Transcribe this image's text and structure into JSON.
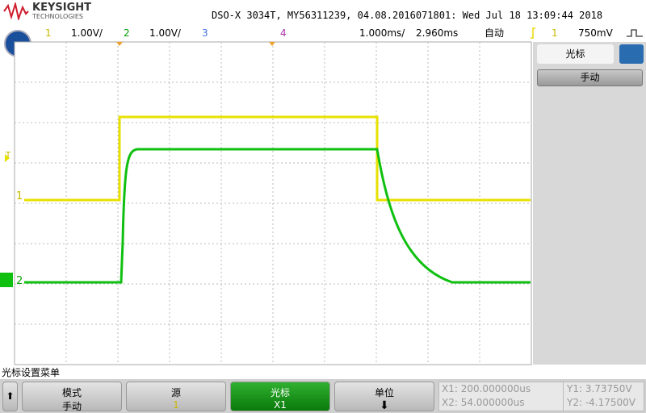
{
  "header": {
    "brand": "KEYSIGHT",
    "brand_sub": "TECHNOLOGIES",
    "info": "DSO-X 3034T, MY56311239, 04.08.2016071801: Wed Jul 18 13:09:44 2018"
  },
  "channels": [
    {
      "label": "1",
      "scale": "1.00V/"
    },
    {
      "label": "2",
      "scale": "1.00V/"
    },
    {
      "label": "3"
    },
    {
      "label": "4"
    }
  ],
  "timebase": {
    "scale": "1.000ms/",
    "delay": "2.960ms"
  },
  "trigger": {
    "mode": "自动",
    "source": "1",
    "level": "750mV"
  },
  "markers": {
    "trigger": "T",
    "ch1": "1",
    "ch2": "2"
  },
  "side_panel": {
    "tab": "光标",
    "button": "手动"
  },
  "menu": {
    "title": "光标设置菜单",
    "softkeys": [
      {
        "label": "模式",
        "value": "手动"
      },
      {
        "label": "源",
        "value": "1"
      },
      {
        "label": "光标",
        "value": "X1"
      },
      {
        "label": "单位"
      }
    ]
  },
  "readouts": [
    "X1: 200.000000us",
    "X2: 54.000000us",
    "Y1: 3.73750V",
    "Y2: -4.17500V"
  ]
}
